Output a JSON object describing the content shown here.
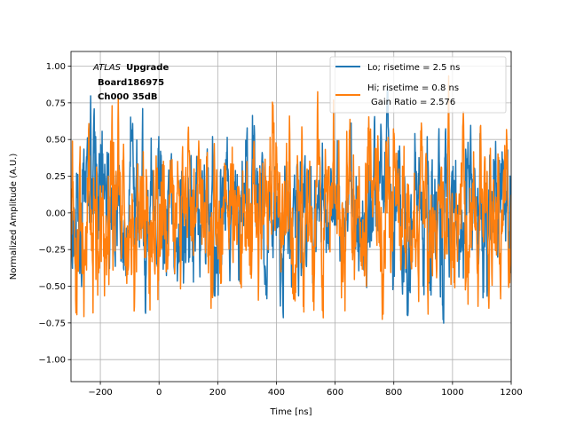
{
  "chart_data": {
    "type": "line",
    "title": "",
    "xlabel": "Time [ns]",
    "ylabel": "Normalized Amplitude (A.U.)",
    "xlim": [
      -300,
      1200
    ],
    "ylim": [
      -1.15,
      1.1
    ],
    "xticks": [
      -200,
      0,
      200,
      400,
      600,
      800,
      1000,
      1200
    ],
    "xtick_labels": [
      "−200",
      "0",
      "200",
      "400",
      "600",
      "800",
      "1000",
      "1200"
    ],
    "yticks": [
      -1.0,
      -0.75,
      -0.5,
      -0.25,
      0.0,
      0.25,
      0.5,
      0.75,
      1.0
    ],
    "ytick_labels": [
      "−1.00",
      "−0.75",
      "−0.50",
      "−0.25",
      "0.00",
      "0.25",
      "0.50",
      "0.75",
      "1.00"
    ],
    "grid": true,
    "legend_position": "top-right",
    "annotation": {
      "italic": "ATLAS",
      "bold": "Upgrade",
      "line2": "Board186975",
      "line3": "Ch000 35dB"
    },
    "series": [
      {
        "name": "Lo; risetime = 2.5 ns",
        "color": "#1f77b4",
        "x_start": -300,
        "x_end": 1200,
        "n_points": 1500,
        "noise_rms": 0.2,
        "max": 1.0,
        "min": -0.76,
        "seed": 17
      },
      {
        "name": "Hi; risetime = 0.8 ns",
        "color": "#ff7f0e",
        "x_start": -300,
        "x_end": 1200,
        "n_points": 1500,
        "noise_rms": 0.22,
        "max": 1.0,
        "min": -0.73,
        "seed": 91
      }
    ],
    "legend_extra": "Gain Ratio = 2.576"
  }
}
